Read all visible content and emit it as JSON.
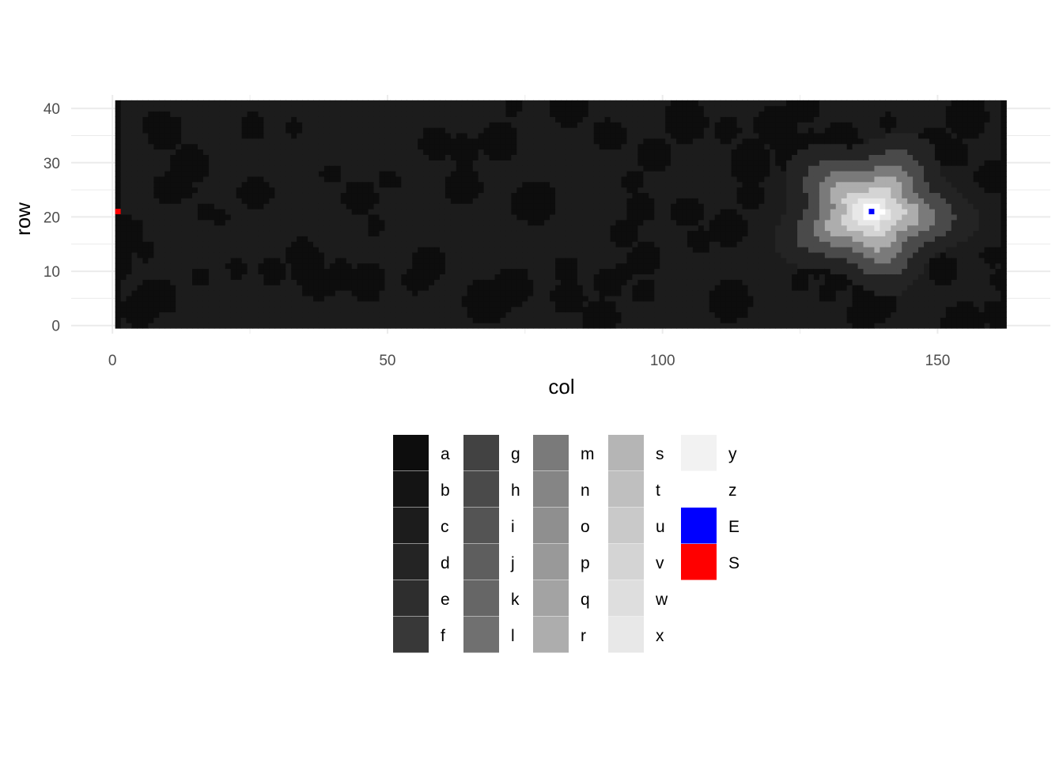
{
  "chart_data": {
    "type": "heatmap",
    "title": "",
    "xlabel": "col",
    "ylabel": "row",
    "xlim": [
      -7.5,
      170.5
    ],
    "ylim": [
      -1.5,
      42.5
    ],
    "x_ticks": [
      0,
      50,
      100,
      150
    ],
    "x_minor_ticks": [
      25,
      75,
      125
    ],
    "y_ticks": [
      0,
      10,
      20,
      30,
      40
    ],
    "y_minor_ticks": [
      5,
      15,
      25,
      35
    ],
    "grid": true,
    "legend_position": "bottom",
    "grid_size": {
      "cols": 162,
      "rows": 41
    },
    "background_levels": [
      "a",
      "c"
    ],
    "peak": {
      "col": 138,
      "row": 21,
      "levels": [
        "d",
        "h",
        "m",
        "r",
        "v",
        "x",
        "z"
      ],
      "radius_cols": [
        35,
        27,
        21,
        16,
        11,
        7,
        4
      ],
      "star_points": 5,
      "star_amplitude": 0.12
    },
    "markers": [
      {
        "label": "S",
        "col": 1,
        "row": 21
      },
      {
        "label": "E",
        "col": 138,
        "row": 21
      }
    ],
    "legend": [
      {
        "label": "a",
        "color": "#0d0d0d"
      },
      {
        "label": "b",
        "color": "#141414"
      },
      {
        "label": "c",
        "color": "#1c1c1c"
      },
      {
        "label": "d",
        "color": "#242424"
      },
      {
        "label": "e",
        "color": "#2e2e2e"
      },
      {
        "label": "f",
        "color": "#383838"
      },
      {
        "label": "g",
        "color": "#424242"
      },
      {
        "label": "h",
        "color": "#4a4a4a"
      },
      {
        "label": "i",
        "color": "#545454"
      },
      {
        "label": "j",
        "color": "#5e5e5e"
      },
      {
        "label": "k",
        "color": "#666666"
      },
      {
        "label": "l",
        "color": "#707070"
      },
      {
        "label": "m",
        "color": "#7a7a7a"
      },
      {
        "label": "n",
        "color": "#858585"
      },
      {
        "label": "o",
        "color": "#8f8f8f"
      },
      {
        "label": "p",
        "color": "#999999"
      },
      {
        "label": "q",
        "color": "#a3a3a3"
      },
      {
        "label": "r",
        "color": "#adadad"
      },
      {
        "label": "s",
        "color": "#b5b5b5"
      },
      {
        "label": "t",
        "color": "#bfbfbf"
      },
      {
        "label": "u",
        "color": "#c9c9c9"
      },
      {
        "label": "v",
        "color": "#d4d4d4"
      },
      {
        "label": "w",
        "color": "#dedede"
      },
      {
        "label": "x",
        "color": "#e8e8e8"
      },
      {
        "label": "y",
        "color": "#f2f2f2"
      },
      {
        "label": "z",
        "color": "#ffffff"
      },
      {
        "label": "E",
        "color": "#0000ff"
      },
      {
        "label": "S",
        "color": "#ff0000"
      }
    ]
  }
}
